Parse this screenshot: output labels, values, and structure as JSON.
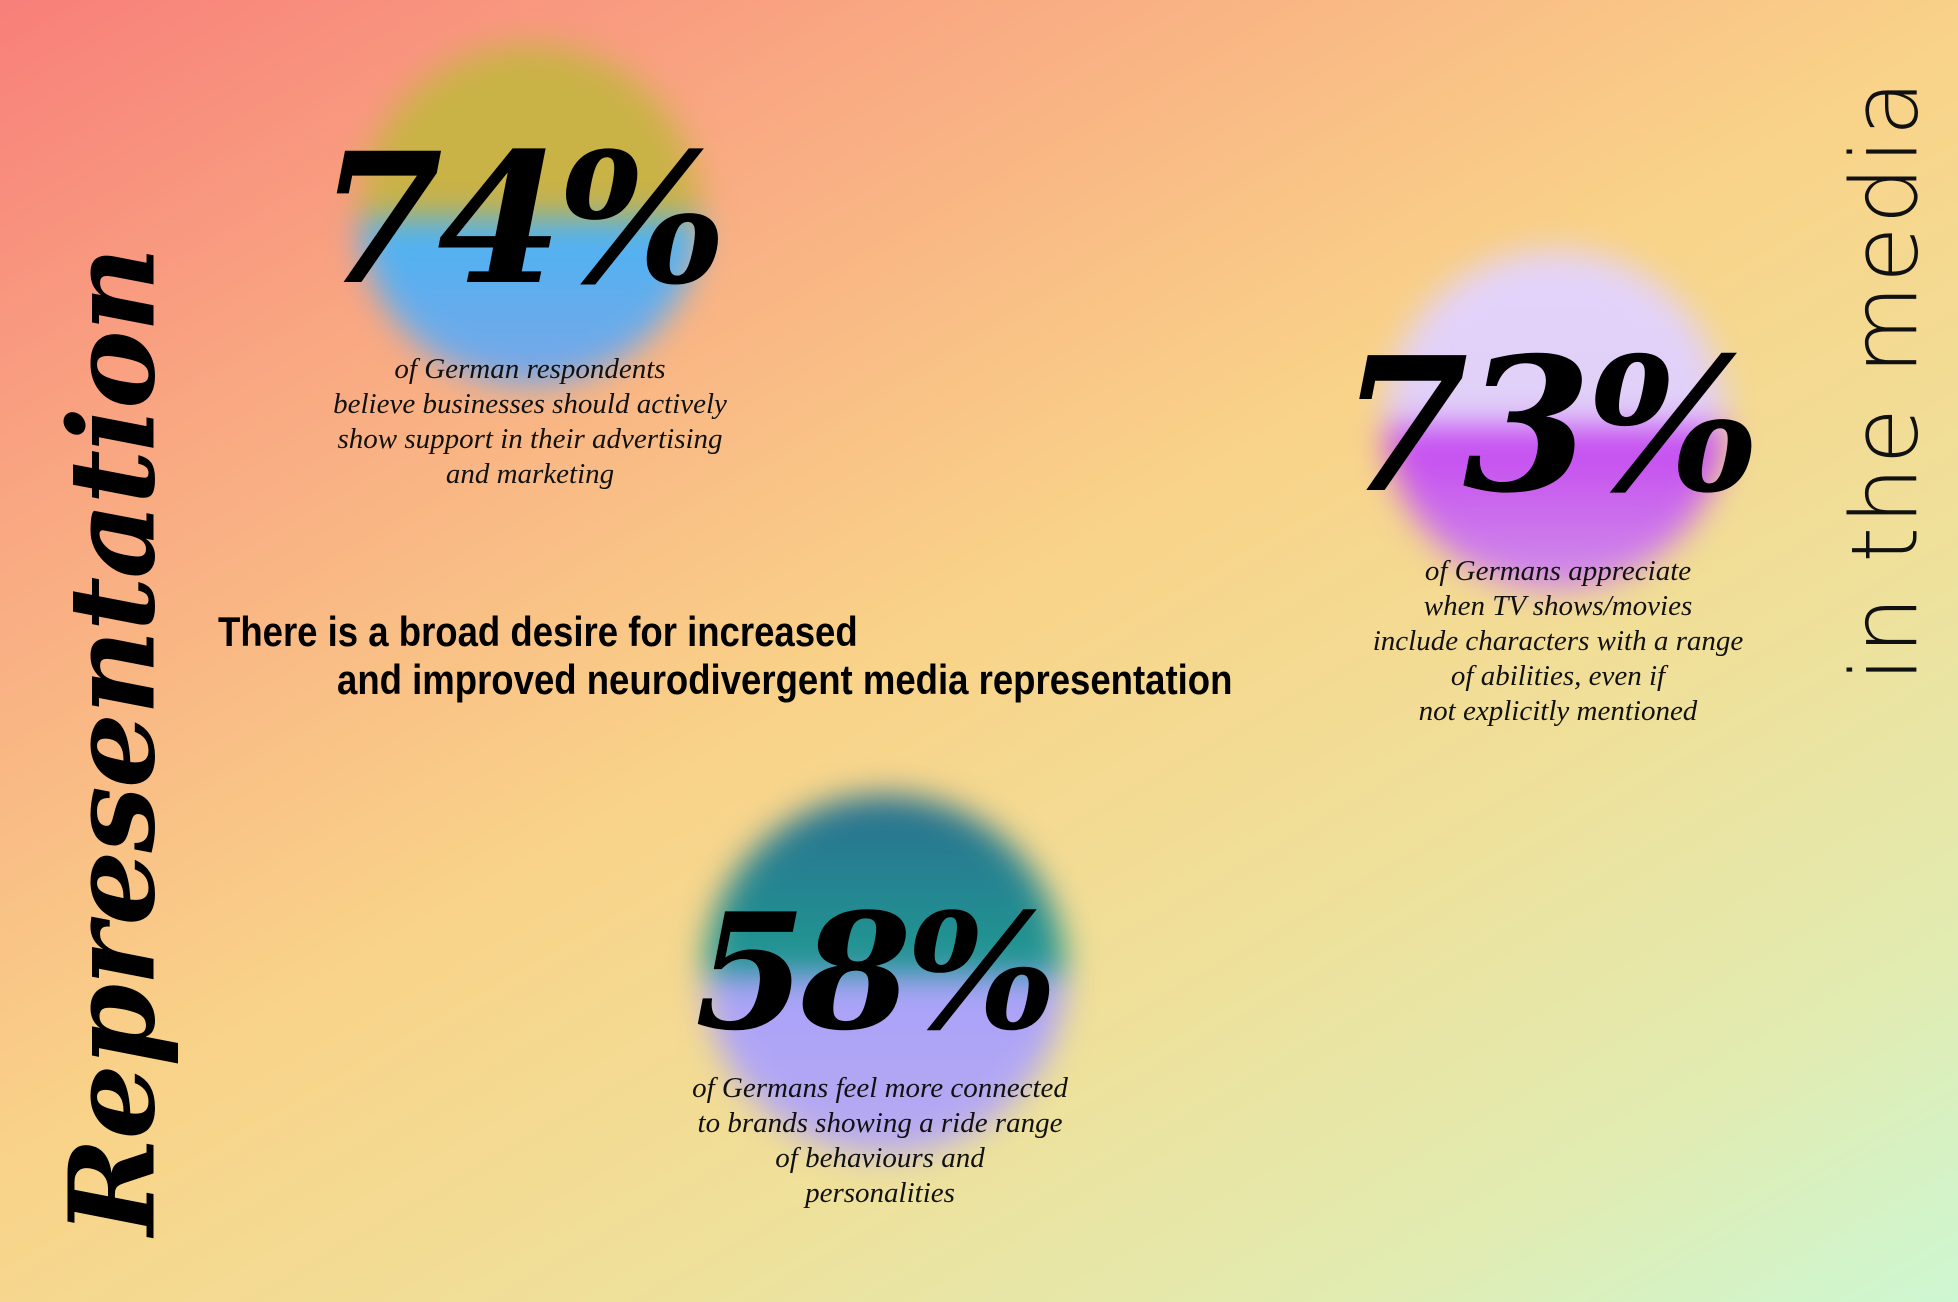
{
  "title": "Representation",
  "subtitle": "in the media",
  "headline": {
    "line1": "There is a broad desire for increased",
    "line2": "and improved neurodivergent media representation"
  },
  "stats": [
    {
      "value": "74%",
      "caption": [
        "of German respondents",
        "believe businesses should actively",
        "show support in their advertising",
        "and marketing"
      ],
      "colors": {
        "top": "#c9b246",
        "bottom": "#4ab4f4"
      }
    },
    {
      "value": "73%",
      "caption": [
        "of Germans appreciate",
        "when TV shows/movies",
        "include characters with a range",
        "of abilities, even if",
        "not explicitly mentioned"
      ],
      "colors": {
        "top": "#e4d4fa",
        "bottom": "#c544f2"
      }
    },
    {
      "value": "58%",
      "caption": [
        "of Germans feel more connected",
        "to brands showing a ride range",
        "of behaviours and",
        "personalities"
      ],
      "colors": {
        "top": "#1f8a92",
        "bottom": "#a9a2fa"
      }
    }
  ]
}
